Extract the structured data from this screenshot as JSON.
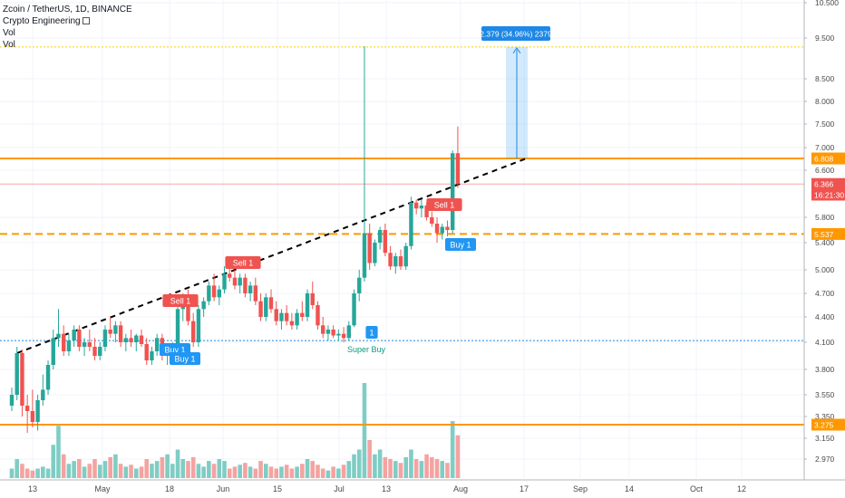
{
  "legend": {
    "title": "Zcoin / TetherUS, 1D, BINANCE",
    "indicator": "Crypto Engineering",
    "vol1": "Vol",
    "vol2": "Vol"
  },
  "colors": {
    "up": "#26a69a",
    "down": "#ef5350",
    "orange": "#ff9800",
    "yellow": "#f5d600",
    "blue": "#1e88e5",
    "trend": "#000000"
  },
  "chart_data": {
    "type": "candlestick",
    "symbol": "Zcoin / TetherUS",
    "interval": "1D",
    "exchange": "BINANCE",
    "ylim": [
      2.8,
      10.5
    ],
    "y_ticks": [
      "10.500",
      "9.500",
      "8.500",
      "8.000",
      "7.500",
      "7.000",
      "6.600",
      "5.800",
      "5.400",
      "5.000",
      "4.700",
      "4.400",
      "4.100",
      "3.800",
      "3.550",
      "3.350",
      "3.150",
      "2.970"
    ],
    "x_ticks": [
      "13",
      "May",
      "18",
      "Jun",
      "15",
      "Jul",
      "13",
      "Aug",
      "17",
      "Sep",
      "14",
      "Oct",
      "12"
    ],
    "price_labels": [
      {
        "text": "6.808",
        "kind": "level"
      },
      {
        "text": "6.366",
        "kind": "last"
      },
      {
        "text": "16:21:30",
        "kind": "countdown"
      },
      {
        "text": "5.537",
        "kind": "level"
      },
      {
        "text": "3.275",
        "kind": "level"
      }
    ],
    "measure_label": "2.379 (34.96%) 2379",
    "signals": [
      {
        "text": "Sell 1",
        "type": "sell"
      },
      {
        "text": "Sell 1",
        "type": "sell"
      },
      {
        "text": "Sell 1",
        "type": "sell"
      },
      {
        "text": "Buy 1",
        "type": "buy"
      },
      {
        "text": "Buy 1",
        "type": "buy"
      },
      {
        "text": "1",
        "type": "buy"
      },
      {
        "text": "Buy 1",
        "type": "buy"
      }
    ],
    "super_buy": "Super Buy",
    "levels": {
      "resistance": 6.808,
      "mid": 5.537,
      "support": 3.275,
      "dotted_blue": 4.12,
      "target_yellow": 9.28,
      "last": 6.366
    },
    "trendline": {
      "start": 3.98,
      "end": 6.8
    },
    "candles": [
      [
        3.45,
        3.62,
        3.4,
        3.55
      ],
      [
        3.55,
        4.05,
        3.5,
        3.98
      ],
      [
        3.98,
        4.02,
        3.35,
        3.45
      ],
      [
        3.45,
        3.55,
        3.2,
        3.4
      ],
      [
        3.4,
        3.6,
        3.25,
        3.3
      ],
      [
        3.3,
        3.55,
        3.22,
        3.5
      ],
      [
        3.5,
        3.75,
        3.45,
        3.6
      ],
      [
        3.6,
        3.9,
        3.55,
        3.85
      ],
      [
        3.85,
        4.25,
        3.8,
        4.15
      ],
      [
        4.15,
        4.5,
        4.05,
        4.2
      ],
      [
        4.2,
        4.3,
        3.95,
        4.0
      ],
      [
        4.0,
        4.2,
        3.95,
        4.12
      ],
      [
        4.12,
        4.3,
        4.05,
        4.25
      ],
      [
        4.25,
        4.3,
        4.0,
        4.05
      ],
      [
        4.05,
        4.15,
        3.95,
        4.1
      ],
      [
        4.1,
        4.25,
        4.0,
        4.05
      ],
      [
        4.05,
        4.15,
        3.9,
        3.95
      ],
      [
        3.95,
        4.1,
        3.9,
        4.05
      ],
      [
        4.05,
        4.3,
        4.0,
        4.25
      ],
      [
        4.25,
        4.4,
        4.15,
        4.2
      ],
      [
        4.2,
        4.35,
        4.1,
        4.3
      ],
      [
        4.3,
        4.35,
        4.05,
        4.1
      ],
      [
        4.1,
        4.2,
        4.0,
        4.15
      ],
      [
        4.15,
        4.25,
        4.05,
        4.1
      ],
      [
        4.1,
        4.2,
        4.0,
        4.18
      ],
      [
        4.18,
        4.25,
        4.05,
        4.08
      ],
      [
        4.08,
        4.15,
        3.85,
        3.9
      ],
      [
        3.9,
        4.05,
        3.85,
        4.0
      ],
      [
        4.0,
        4.2,
        3.95,
        4.15
      ],
      [
        4.15,
        4.2,
        3.9,
        3.95
      ],
      [
        3.95,
        4.05,
        3.85,
        3.98
      ],
      [
        3.98,
        4.1,
        3.9,
        4.05
      ],
      [
        4.05,
        4.6,
        4.0,
        4.5
      ],
      [
        4.5,
        4.7,
        4.35,
        4.65
      ],
      [
        4.65,
        4.75,
        4.3,
        4.35
      ],
      [
        4.35,
        4.45,
        4.05,
        4.1
      ],
      [
        4.1,
        4.55,
        4.05,
        4.5
      ],
      [
        4.5,
        4.65,
        4.4,
        4.6
      ],
      [
        4.6,
        4.85,
        4.55,
        4.8
      ],
      [
        4.8,
        4.95,
        4.6,
        4.65
      ],
      [
        4.65,
        4.8,
        4.55,
        4.75
      ],
      [
        4.75,
        5.05,
        4.7,
        4.95
      ],
      [
        4.95,
        5.1,
        4.85,
        4.9
      ],
      [
        4.9,
        5.0,
        4.75,
        4.8
      ],
      [
        4.8,
        4.95,
        4.7,
        4.9
      ],
      [
        4.9,
        4.95,
        4.65,
        4.7
      ],
      [
        4.7,
        4.85,
        4.6,
        4.8
      ],
      [
        4.8,
        4.9,
        4.55,
        4.6
      ],
      [
        4.6,
        4.7,
        4.35,
        4.4
      ],
      [
        4.4,
        4.7,
        4.35,
        4.65
      ],
      [
        4.65,
        4.75,
        4.45,
        4.5
      ],
      [
        4.5,
        4.6,
        4.3,
        4.35
      ],
      [
        4.35,
        4.5,
        4.25,
        4.45
      ],
      [
        4.45,
        4.55,
        4.3,
        4.35
      ],
      [
        4.35,
        4.45,
        4.25,
        4.3
      ],
      [
        4.3,
        4.5,
        4.25,
        4.45
      ],
      [
        4.45,
        4.6,
        4.35,
        4.4
      ],
      [
        4.4,
        4.75,
        4.35,
        4.7
      ],
      [
        4.7,
        4.85,
        4.5,
        4.55
      ],
      [
        4.55,
        4.6,
        4.25,
        4.3
      ],
      [
        4.3,
        4.4,
        4.15,
        4.2
      ],
      [
        4.2,
        4.3,
        4.12,
        4.25
      ],
      [
        4.25,
        4.3,
        4.15,
        4.18
      ],
      [
        4.18,
        4.25,
        4.12,
        4.2
      ],
      [
        4.2,
        4.28,
        4.1,
        4.15
      ],
      [
        4.15,
        4.35,
        4.12,
        4.3
      ],
      [
        4.3,
        4.75,
        4.28,
        4.7
      ],
      [
        4.7,
        5.0,
        4.6,
        4.9
      ],
      [
        4.9,
        9.3,
        4.85,
        5.55
      ],
      [
        5.55,
        5.7,
        5.0,
        5.1
      ],
      [
        5.1,
        5.45,
        5.05,
        5.4
      ],
      [
        5.4,
        5.65,
        5.3,
        5.6
      ],
      [
        5.6,
        5.7,
        5.2,
        5.25
      ],
      [
        5.25,
        5.35,
        5.0,
        5.05
      ],
      [
        5.05,
        5.25,
        4.95,
        5.2
      ],
      [
        5.2,
        5.3,
        5.0,
        5.05
      ],
      [
        5.05,
        5.4,
        5.0,
        5.35
      ],
      [
        5.35,
        6.15,
        5.3,
        6.05
      ],
      [
        6.05,
        6.1,
        5.85,
        5.95
      ],
      [
        5.95,
        6.1,
        5.8,
        6.0
      ],
      [
        6.0,
        6.05,
        5.75,
        5.8
      ],
      [
        5.8,
        5.9,
        5.65,
        5.7
      ],
      [
        5.7,
        5.8,
        5.4,
        5.55
      ],
      [
        5.55,
        5.7,
        5.45,
        5.65
      ],
      [
        5.65,
        5.75,
        5.5,
        5.6
      ],
      [
        5.6,
        6.95,
        5.55,
        6.9
      ],
      [
        6.9,
        7.45,
        6.3,
        6.37
      ]
    ],
    "volumes": [
      0.1,
      0.2,
      0.15,
      0.1,
      0.08,
      0.1,
      0.12,
      0.1,
      0.35,
      0.55,
      0.25,
      0.15,
      0.18,
      0.2,
      0.12,
      0.15,
      0.2,
      0.14,
      0.18,
      0.22,
      0.25,
      0.15,
      0.12,
      0.14,
      0.1,
      0.12,
      0.2,
      0.15,
      0.18,
      0.22,
      0.25,
      0.15,
      0.3,
      0.2,
      0.18,
      0.22,
      0.15,
      0.12,
      0.18,
      0.15,
      0.2,
      0.18,
      0.1,
      0.12,
      0.14,
      0.16,
      0.12,
      0.1,
      0.18,
      0.15,
      0.12,
      0.1,
      0.12,
      0.14,
      0.1,
      0.12,
      0.15,
      0.2,
      0.18,
      0.14,
      0.1,
      0.08,
      0.12,
      0.1,
      0.14,
      0.18,
      0.25,
      0.3,
      1.0,
      0.4,
      0.25,
      0.3,
      0.22,
      0.2,
      0.18,
      0.16,
      0.22,
      0.3,
      0.2,
      0.18,
      0.25,
      0.22,
      0.2,
      0.18,
      0.16,
      0.6,
      0.45
    ]
  }
}
